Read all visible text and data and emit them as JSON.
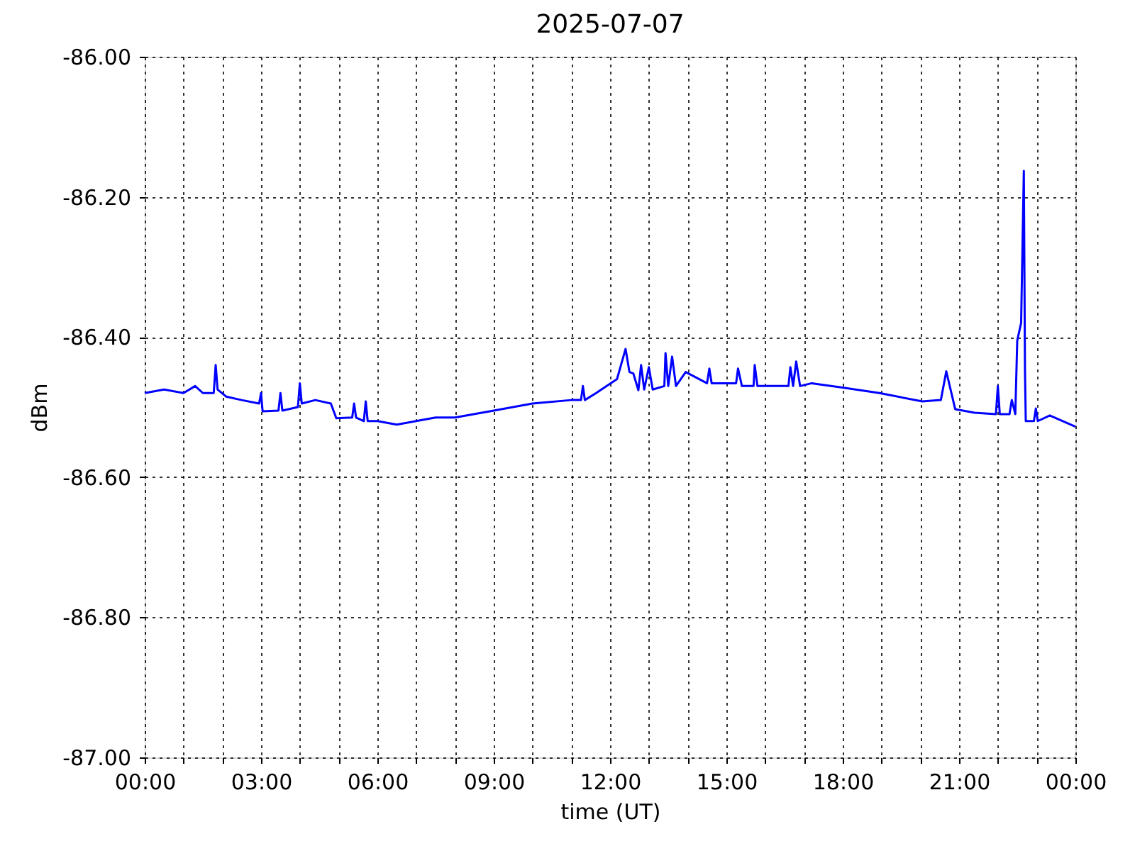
{
  "chart_data": {
    "type": "line",
    "title": "2025-07-07",
    "xlabel": "time (UT)",
    "ylabel": "dBm",
    "xlim": [
      0,
      24
    ],
    "xticks": [
      {
        "value": 0,
        "label": "00:00"
      },
      {
        "value": 1,
        "label": null
      },
      {
        "value": 2,
        "label": null
      },
      {
        "value": 3,
        "label": "03:00"
      },
      {
        "value": 4,
        "label": null
      },
      {
        "value": 5,
        "label": null
      },
      {
        "value": 6,
        "label": "06:00"
      },
      {
        "value": 7,
        "label": null
      },
      {
        "value": 8,
        "label": null
      },
      {
        "value": 9,
        "label": "09:00"
      },
      {
        "value": 10,
        "label": null
      },
      {
        "value": 11,
        "label": null
      },
      {
        "value": 12,
        "label": "12:00"
      },
      {
        "value": 13,
        "label": null
      },
      {
        "value": 14,
        "label": null
      },
      {
        "value": 15,
        "label": "15:00"
      },
      {
        "value": 16,
        "label": null
      },
      {
        "value": 17,
        "label": null
      },
      {
        "value": 18,
        "label": "18:00"
      },
      {
        "value": 19,
        "label": null
      },
      {
        "value": 20,
        "label": null
      },
      {
        "value": 21,
        "label": "21:00"
      },
      {
        "value": 22,
        "label": null
      },
      {
        "value": 23,
        "label": null
      },
      {
        "value": 24,
        "label": "00:00"
      }
    ],
    "ylim": [
      -87.0,
      -86.0
    ],
    "yticks": [
      {
        "value": -87.0,
        "label": "-87.00"
      },
      {
        "value": -86.8,
        "label": "-86.80"
      },
      {
        "value": -86.6,
        "label": "-86.60"
      },
      {
        "value": -86.4,
        "label": "-86.40"
      },
      {
        "value": -86.2,
        "label": "-86.20"
      },
      {
        "value": -86.0,
        "label": "-86.00"
      }
    ],
    "grid": true,
    "line_style": "solid",
    "marker": "none",
    "series": [
      {
        "color": "#0000ff",
        "x": [
          0,
          0.5,
          1.0,
          1.3,
          1.5,
          1.78,
          1.83,
          1.88,
          2.1,
          2.5,
          2.95,
          3.0,
          3.04,
          3.45,
          3.5,
          3.55,
          3.95,
          4.0,
          4.05,
          4.4,
          4.8,
          4.94,
          5.35,
          5.4,
          5.45,
          5.65,
          5.7,
          5.75,
          6.0,
          6.5,
          7.0,
          7.5,
          8.0,
          9.0,
          10.0,
          11.0,
          11.25,
          11.3,
          11.35,
          11.64,
          12.18,
          12.4,
          12.5,
          12.6,
          12.73,
          12.8,
          12.88,
          13.0,
          13.1,
          13.4,
          13.43,
          13.5,
          13.6,
          13.7,
          13.95,
          14.5,
          14.56,
          14.62,
          15.25,
          15.3,
          15.4,
          15.7,
          15.73,
          15.8,
          16.6,
          16.65,
          16.72,
          16.8,
          16.9,
          17.2,
          17.96,
          18.95,
          20.05,
          20.53,
          20.67,
          20.9,
          21.4,
          21.95,
          22.0,
          22.05,
          22.3,
          22.36,
          22.45,
          22.5,
          22.6,
          22.67,
          22.7,
          22.72,
          22.93,
          22.98,
          23.03,
          23.34,
          24.0
        ],
        "values": [
          -86.48,
          -86.475,
          -86.48,
          -86.47,
          -86.48,
          -86.48,
          -86.44,
          -86.475,
          -86.485,
          -86.49,
          -86.495,
          -86.48,
          -86.506,
          -86.505,
          -86.48,
          -86.505,
          -86.5,
          -86.466,
          -86.495,
          -86.49,
          -86.495,
          -86.516,
          -86.515,
          -86.495,
          -86.515,
          -86.52,
          -86.492,
          -86.52,
          -86.52,
          -86.525,
          -86.52,
          -86.515,
          -86.515,
          -86.505,
          -86.495,
          -86.49,
          -86.49,
          -86.47,
          -86.49,
          -86.48,
          -86.46,
          -86.417,
          -86.45,
          -86.452,
          -86.476,
          -86.44,
          -86.475,
          -86.443,
          -86.475,
          -86.47,
          -86.423,
          -86.47,
          -86.428,
          -86.47,
          -86.45,
          -86.466,
          -86.445,
          -86.466,
          -86.466,
          -86.445,
          -86.47,
          -86.47,
          -86.44,
          -86.47,
          -86.47,
          -86.443,
          -86.47,
          -86.435,
          -86.47,
          -86.466,
          -86.472,
          -86.48,
          -86.492,
          -86.49,
          -86.449,
          -86.503,
          -86.508,
          -86.51,
          -86.47,
          -86.51,
          -86.51,
          -86.49,
          -86.51,
          -86.405,
          -86.38,
          -86.163,
          -86.45,
          -86.52,
          -86.52,
          -86.502,
          -86.52,
          -86.512,
          -86.528
        ]
      }
    ]
  }
}
